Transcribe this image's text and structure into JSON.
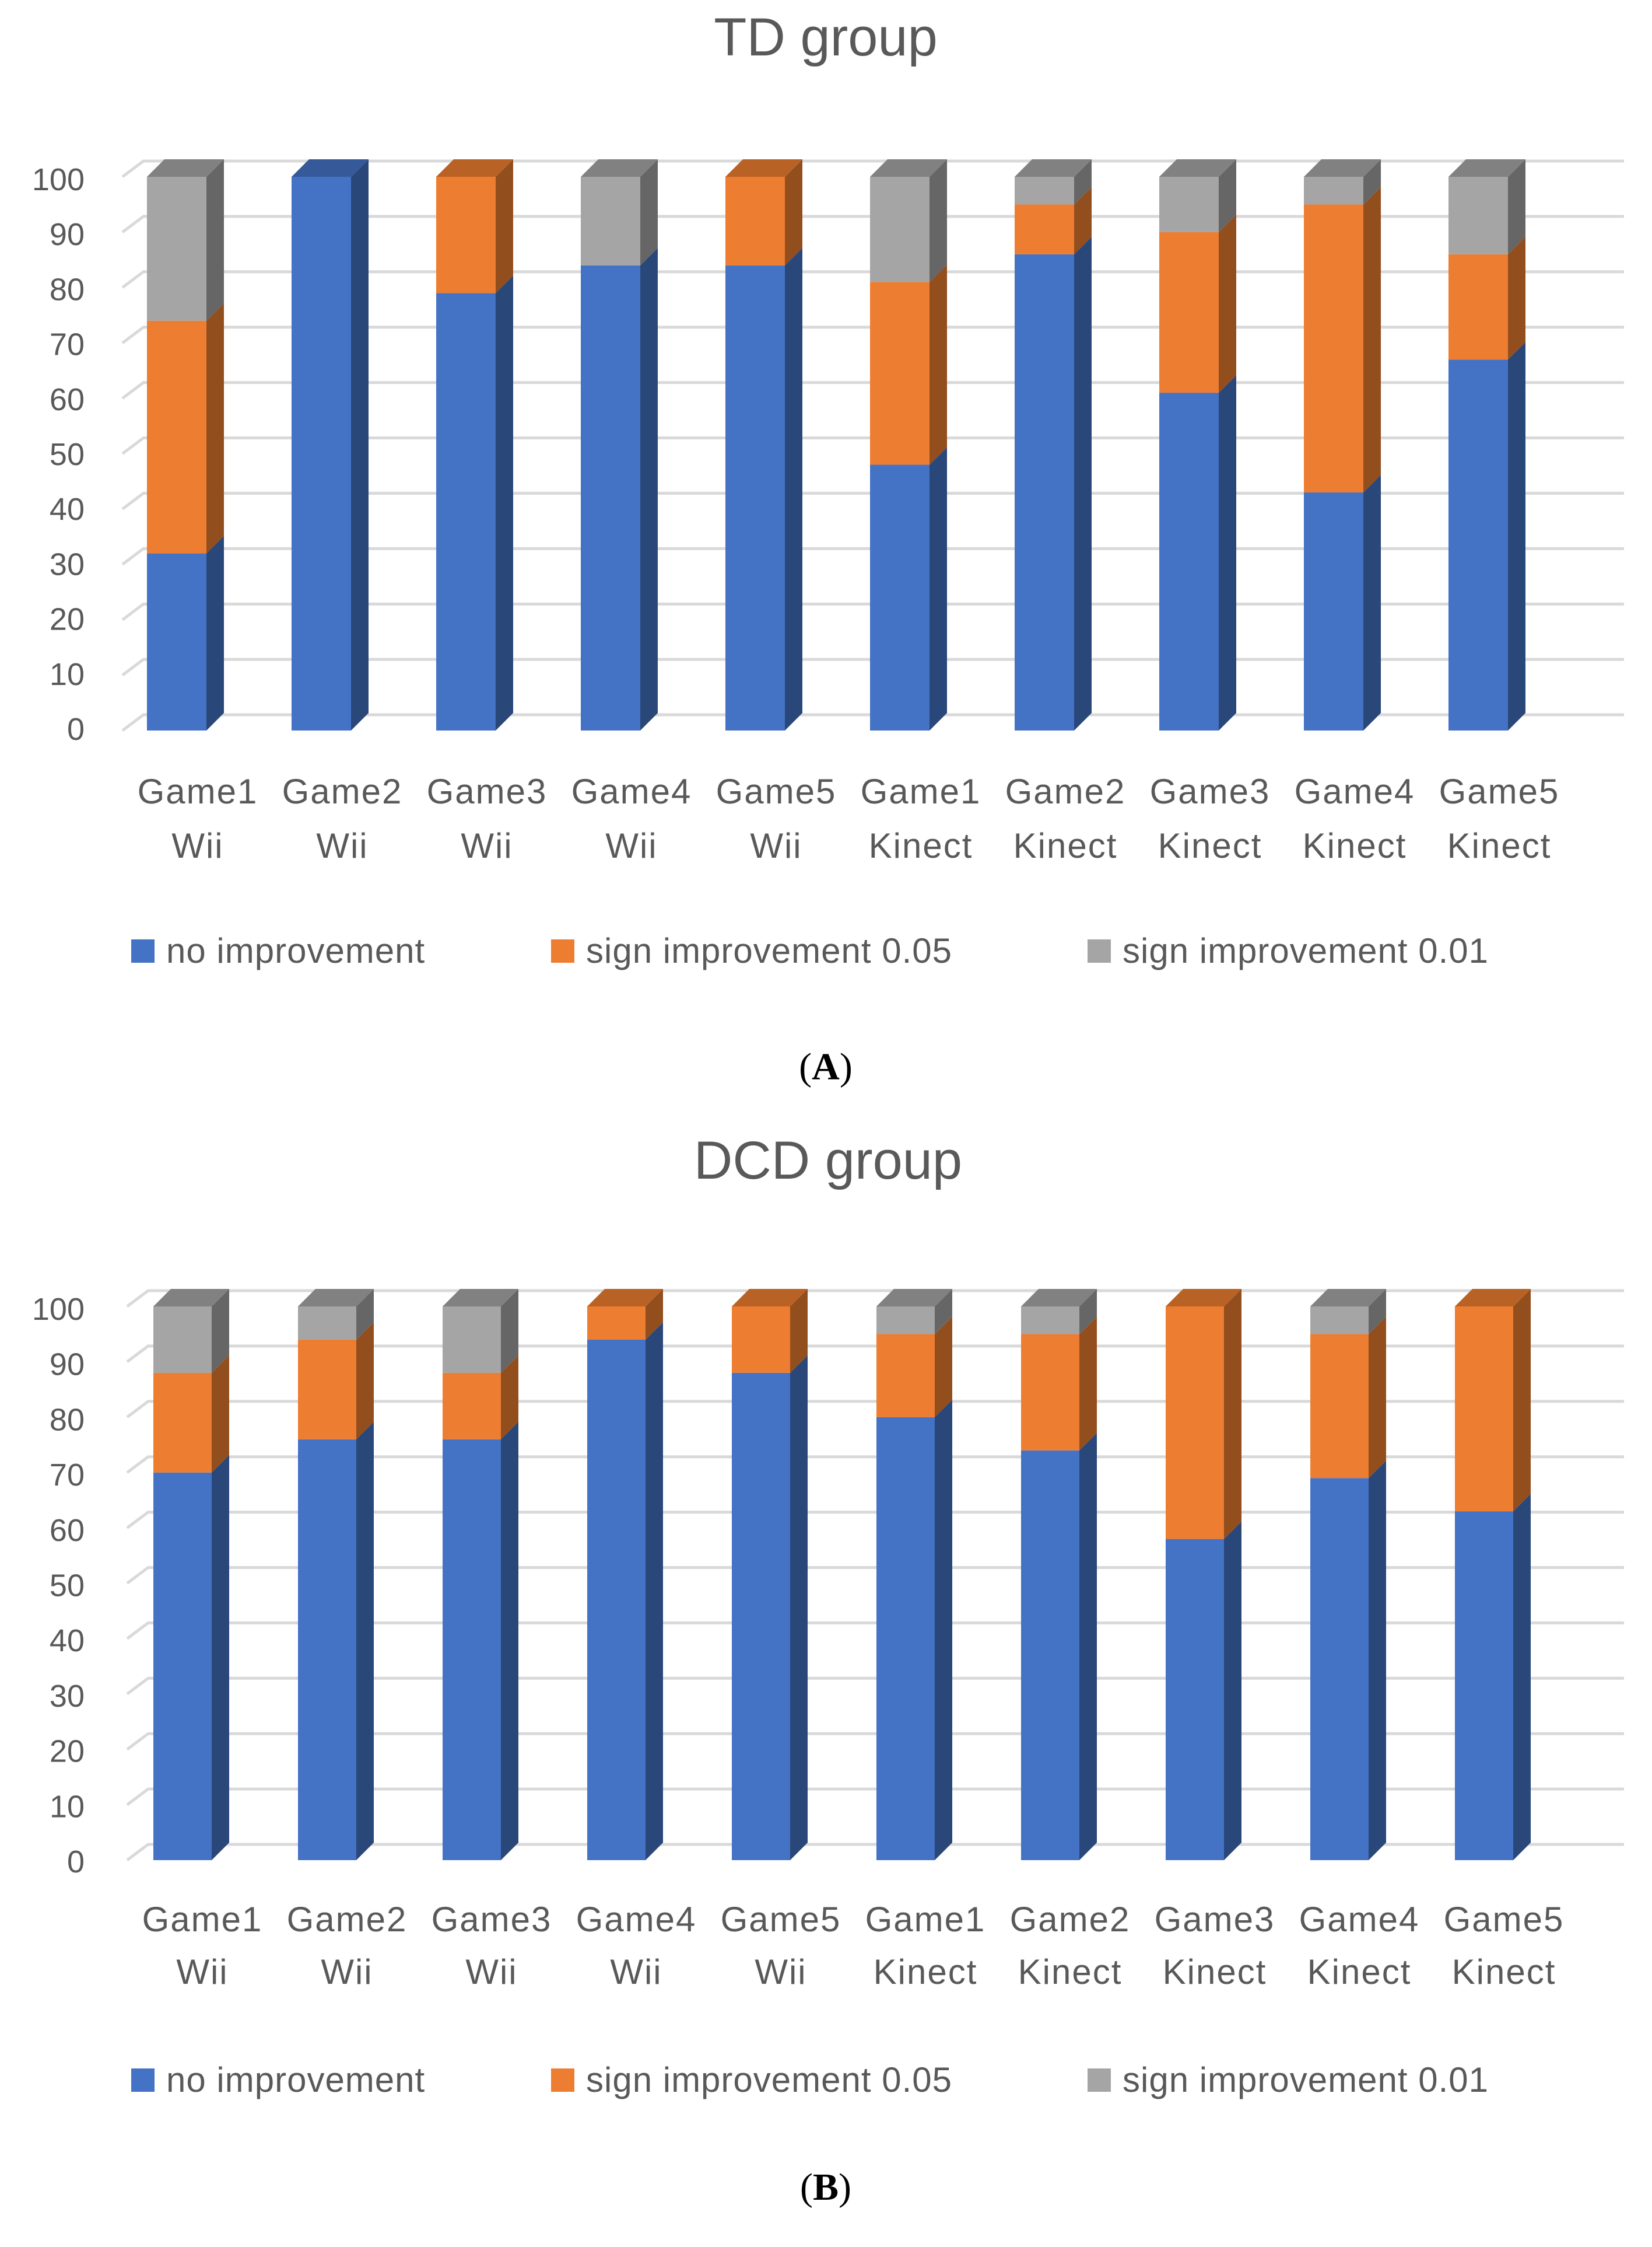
{
  "colors": {
    "no_improvement": "#4472c4",
    "sign_0_05": "#ed7d31",
    "sign_0_01": "#a5a5a5"
  },
  "chart_data": [
    {
      "type": "bar",
      "stacked": true,
      "title": "TD group",
      "panel_label": "A",
      "categories": [
        [
          "Game1",
          "Wii"
        ],
        [
          "Game2",
          "Wii"
        ],
        [
          "Game3",
          "Wii"
        ],
        [
          "Game4",
          "Wii"
        ],
        [
          "Game5",
          "Wii"
        ],
        [
          "Game1",
          "Kinect"
        ],
        [
          "Game2",
          "Kinect"
        ],
        [
          "Game3",
          "Kinect"
        ],
        [
          "Game4",
          "Kinect"
        ],
        [
          "Game5",
          "Kinect"
        ]
      ],
      "series": [
        {
          "name": "no improvement",
          "values": [
            32,
            100,
            79,
            84,
            84,
            48,
            86,
            61,
            43,
            67
          ]
        },
        {
          "name": "sign improvement 0.05",
          "values": [
            42,
            0,
            21,
            0,
            16,
            33,
            9,
            29,
            52,
            19
          ]
        },
        {
          "name": "sign improvement 0.01",
          "values": [
            26,
            0,
            0,
            16,
            0,
            19,
            5,
            10,
            5,
            14
          ]
        }
      ],
      "yticks": [
        "0",
        "10",
        "20",
        "30",
        "40",
        "50",
        "60",
        "70",
        "80",
        "90",
        "100"
      ],
      "ylim": [
        0,
        100
      ],
      "xlabel": "",
      "ylabel": "",
      "legend": "bottom"
    },
    {
      "type": "bar",
      "stacked": true,
      "title": "DCD group",
      "panel_label": "B",
      "categories": [
        [
          "Game1",
          "Wii"
        ],
        [
          "Game2",
          "Wii"
        ],
        [
          "Game3",
          "Wii"
        ],
        [
          "Game4",
          "Wii"
        ],
        [
          "Game5",
          "Wii"
        ],
        [
          "Game1",
          "Kinect"
        ],
        [
          "Game2",
          "Kinect"
        ],
        [
          "Game3",
          "Kinect"
        ],
        [
          "Game4",
          "Kinect"
        ],
        [
          "Game5",
          "Kinect"
        ]
      ],
      "series": [
        {
          "name": "no improvement",
          "values": [
            70,
            76,
            76,
            94,
            88,
            80,
            74,
            58,
            69,
            63
          ]
        },
        {
          "name": "sign improvement 0.05",
          "values": [
            18,
            18,
            12,
            6,
            12,
            15,
            21,
            42,
            26,
            37
          ]
        },
        {
          "name": "sign improvement 0.01",
          "values": [
            12,
            6,
            12,
            0,
            0,
            5,
            5,
            0,
            5,
            0
          ]
        }
      ],
      "yticks": [
        "0",
        "10",
        "20",
        "30",
        "40",
        "50",
        "60",
        "70",
        "80",
        "90",
        "100"
      ],
      "ylim": [
        0,
        100
      ],
      "xlabel": "",
      "ylabel": "",
      "legend": "bottom"
    }
  ]
}
